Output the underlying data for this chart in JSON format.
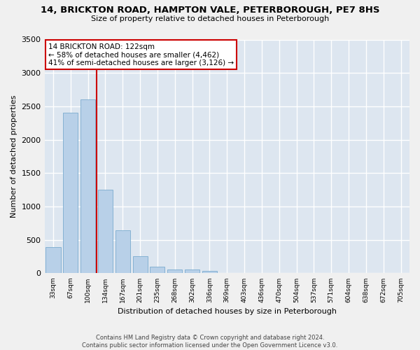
{
  "title_line1": "14, BRICKTON ROAD, HAMPTON VALE, PETERBOROUGH, PE7 8HS",
  "title_line2": "Size of property relative to detached houses in Peterborough",
  "xlabel": "Distribution of detached houses by size in Peterborough",
  "ylabel": "Number of detached properties",
  "footer_line1": "Contains HM Land Registry data © Crown copyright and database right 2024.",
  "footer_line2": "Contains public sector information licensed under the Open Government Licence v3.0.",
  "categories": [
    "33sqm",
    "67sqm",
    "100sqm",
    "134sqm",
    "167sqm",
    "201sqm",
    "235sqm",
    "268sqm",
    "302sqm",
    "336sqm",
    "369sqm",
    "403sqm",
    "436sqm",
    "470sqm",
    "504sqm",
    "537sqm",
    "571sqm",
    "604sqm",
    "638sqm",
    "672sqm",
    "705sqm"
  ],
  "values": [
    390,
    2400,
    2600,
    1250,
    640,
    260,
    100,
    60,
    55,
    40,
    0,
    0,
    0,
    0,
    0,
    0,
    0,
    0,
    0,
    0,
    0
  ],
  "bar_color": "#b8d0e8",
  "bar_edge_color": "#7aabcf",
  "background_color": "#dde6f0",
  "grid_color": "#ffffff",
  "vline_color": "#cc0000",
  "vline_x_index": 2.5,
  "annotation_text": "14 BRICKTON ROAD: 122sqm\n← 58% of detached houses are smaller (4,462)\n41% of semi-detached houses are larger (3,126) →",
  "annotation_box_edgecolor": "#cc0000",
  "ylim": [
    0,
    3500
  ],
  "yticks": [
    0,
    500,
    1000,
    1500,
    2000,
    2500,
    3000,
    3500
  ],
  "fig_bg_color": "#f0f0f0"
}
